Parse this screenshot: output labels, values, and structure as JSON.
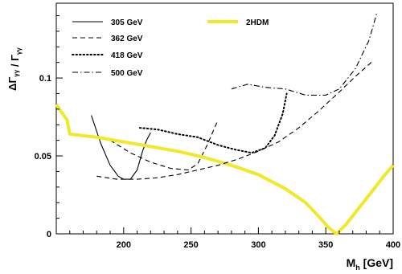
{
  "chart_data": {
    "type": "line",
    "title": "",
    "xlabel": "M_h [GeV]",
    "ylabel": "ΔΓ_γγ / Γ_γγ",
    "xlim": [
      150,
      400
    ],
    "ylim": [
      0,
      0.148
    ],
    "x_ticks": [
      200,
      250,
      300,
      350,
      400
    ],
    "y_ticks": [
      0,
      0.05,
      0.1
    ],
    "x_tick_labels": [
      "200",
      "250",
      "300",
      "350",
      "400"
    ],
    "y_tick_labels": [
      "0",
      "0.05",
      "0.1"
    ],
    "grid": false,
    "legend_position": "top",
    "series": [
      {
        "name": "305 GeV",
        "style": "solid",
        "color": "#000000",
        "x": [
          176,
          183,
          190,
          196,
          200,
          205,
          210,
          214,
          217,
          220
        ],
        "y": [
          0.076,
          0.058,
          0.044,
          0.037,
          0.035,
          0.035,
          0.041,
          0.053,
          0.06,
          0.065
        ]
      },
      {
        "name": "362 GeV",
        "style": "dashed",
        "color": "#000000",
        "x": [
          190,
          205,
          220,
          235,
          248,
          255,
          262,
          270
        ],
        "y": [
          0.06,
          0.052,
          0.046,
          0.042,
          0.041,
          0.045,
          0.057,
          0.073
        ]
      },
      {
        "name": "418 GeV",
        "style": "dotted",
        "color": "#000000",
        "x": [
          212,
          225,
          240,
          255,
          270,
          283,
          295,
          305,
          312,
          318,
          321
        ],
        "y": [
          0.068,
          0.067,
          0.064,
          0.062,
          0.057,
          0.054,
          0.052,
          0.055,
          0.063,
          0.077,
          0.09
        ]
      },
      {
        "name": "500 GeV",
        "style": "dashdot",
        "color": "#000000",
        "x": [
          280,
          292,
          305,
          320,
          335,
          350,
          360,
          372,
          382,
          388
        ],
        "y": [
          0.093,
          0.096,
          0.094,
          0.093,
          0.089,
          0.089,
          0.093,
          0.106,
          0.124,
          0.142
        ]
      },
      {
        "name": "2HDM",
        "style": "solid",
        "color": "#f0e82a",
        "x": [
          150,
          158,
          160,
          180,
          200,
          220,
          240,
          260,
          280,
          300,
          320,
          335,
          345,
          352,
          358,
          365,
          375,
          385,
          393,
          400
        ],
        "y": [
          0.083,
          0.073,
          0.064,
          0.062,
          0.059,
          0.056,
          0.053,
          0.049,
          0.044,
          0.038,
          0.029,
          0.02,
          0.011,
          0.004,
          0.0,
          0.006,
          0.017,
          0.028,
          0.037,
          0.044
        ]
      },
      {
        "name": "",
        "style": "dashed",
        "color": "#000000",
        "x": [
          180,
          195,
          210,
          225,
          240,
          255,
          270,
          285,
          300,
          315,
          330,
          345,
          360,
          372,
          385
        ],
        "y": [
          0.037,
          0.035,
          0.035,
          0.036,
          0.038,
          0.041,
          0.044,
          0.048,
          0.053,
          0.059,
          0.068,
          0.079,
          0.091,
          0.101,
          0.111
        ]
      }
    ]
  }
}
